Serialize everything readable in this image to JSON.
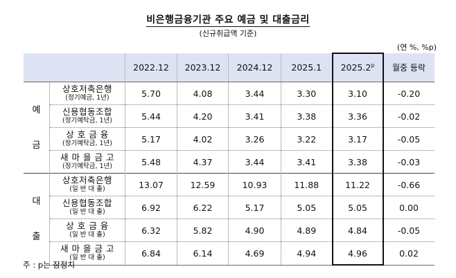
{
  "title": "비은행금융기관 주요 예금 및 대출금리",
  "subtitle": "(신규취급액 기준)",
  "unit": "(연 %, %p)",
  "columns": [
    "2022.12",
    "2023.12",
    "2024.12",
    "2025.1",
    "2025.2",
    "월중 등락"
  ],
  "column_sup": "p",
  "groups": [
    {
      "name": [
        "예",
        "금"
      ],
      "rows": [
        {
          "label": "상호저축은행",
          "sub": "(정기예금, 1년)",
          "values": [
            "5.70",
            "4.08",
            "3.44",
            "3.30",
            "3.10",
            "-0.20"
          ]
        },
        {
          "label": "신용협동조합",
          "sub": "(정기예탁금, 1년)",
          "values": [
            "5.44",
            "4.20",
            "3.41",
            "3.38",
            "3.36",
            "-0.02"
          ]
        },
        {
          "label": "상 호 금 융",
          "sub": "(정기예탁금, 1년)",
          "values": [
            "5.17",
            "4.02",
            "3.26",
            "3.22",
            "3.17",
            "-0.05"
          ]
        },
        {
          "label": "새 마 을 금 고",
          "sub": "(정기예탁금, 1년)",
          "values": [
            "5.48",
            "4.37",
            "3.44",
            "3.41",
            "3.38",
            "-0.03"
          ]
        }
      ]
    },
    {
      "name": [
        "대",
        "출"
      ],
      "rows": [
        {
          "label": "상호저축은행",
          "sub": "(일 반 대 출)",
          "values": [
            "13.07",
            "12.59",
            "10.93",
            "11.88",
            "11.22",
            "-0.66"
          ]
        },
        {
          "label": "신용협동조합",
          "sub": "(일 반 대 출)",
          "values": [
            "6.92",
            "6.22",
            "5.17",
            "5.05",
            "5.05",
            "0.00"
          ]
        },
        {
          "label": "상 호 금 융",
          "sub": "(일 반 대 출)",
          "values": [
            "6.32",
            "5.82",
            "4.90",
            "4.89",
            "4.84",
            "-0.05"
          ]
        },
        {
          "label": "새 마 을 금 고",
          "sub": "(일 반 대 출)",
          "values": [
            "6.84",
            "6.14",
            "4.69",
            "4.94",
            "4.96",
            "0.02"
          ]
        }
      ]
    }
  ],
  "footnote": "주 : p는 잠정치"
}
